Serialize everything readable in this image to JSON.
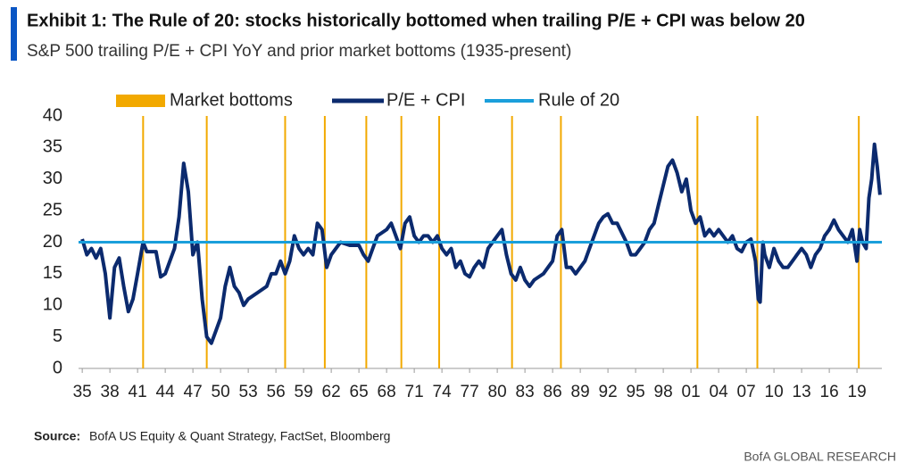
{
  "chart_data": {
    "type": "line",
    "title": "Exhibit 1:  The Rule of 20: stocks historically bottomed when trailing P/E + CPI was below 20",
    "subtitle": "S&P 500 trailing P/E + CPI YoY and prior market bottoms (1935-present)",
    "source_label": "Source:",
    "source": "BofA US Equity & Quant Strategy, FactSet, Bloomberg",
    "credit": "BofA GLOBAL RESEARCH",
    "xlim": [
      1934.6,
      2021.7
    ],
    "ylim": [
      0,
      40
    ],
    "yticks": [
      0,
      5,
      10,
      15,
      20,
      25,
      30,
      35,
      40
    ],
    "xticks": [
      {
        "value": 1935,
        "label": "35"
      },
      {
        "value": 1938,
        "label": "38"
      },
      {
        "value": 1941,
        "label": "41"
      },
      {
        "value": 1944,
        "label": "44"
      },
      {
        "value": 1947,
        "label": "47"
      },
      {
        "value": 1950,
        "label": "50"
      },
      {
        "value": 1953,
        "label": "53"
      },
      {
        "value": 1956,
        "label": "56"
      },
      {
        "value": 1959,
        "label": "59"
      },
      {
        "value": 1962,
        "label": "62"
      },
      {
        "value": 1965,
        "label": "65"
      },
      {
        "value": 1968,
        "label": "68"
      },
      {
        "value": 1971,
        "label": "71"
      },
      {
        "value": 1974,
        "label": "74"
      },
      {
        "value": 1977,
        "label": "77"
      },
      {
        "value": 1980,
        "label": "80"
      },
      {
        "value": 1983,
        "label": "83"
      },
      {
        "value": 1986,
        "label": "86"
      },
      {
        "value": 1989,
        "label": "89"
      },
      {
        "value": 1992,
        "label": "92"
      },
      {
        "value": 1995,
        "label": "95"
      },
      {
        "value": 1998,
        "label": "98"
      },
      {
        "value": 2001,
        "label": "01"
      },
      {
        "value": 2004,
        "label": "04"
      },
      {
        "value": 2007,
        "label": "07"
      },
      {
        "value": 2010,
        "label": "10"
      },
      {
        "value": 2013,
        "label": "13"
      },
      {
        "value": 2016,
        "label": "16"
      },
      {
        "value": 2019,
        "label": "19"
      }
    ],
    "series": [
      {
        "name": "Market bottoms",
        "style": "vline",
        "color": "#f2a900",
        "x": [
          1941.6,
          1948.5,
          1957.0,
          1961.3,
          1965.8,
          1969.6,
          1973.7,
          1981.6,
          1986.9,
          2001.7,
          2008.2,
          2019.2
        ]
      },
      {
        "name": "P/E + CPI",
        "style": "line",
        "color": "#0b2a6e",
        "x": [
          1935,
          1935.5,
          1936,
          1936.5,
          1937,
          1937.5,
          1938,
          1938.5,
          1939,
          1939.5,
          1940,
          1940.5,
          1941,
          1941.6,
          1942,
          1942.5,
          1943,
          1943.5,
          1944,
          1944.5,
          1945,
          1945.5,
          1946,
          1946.5,
          1947,
          1947.5,
          1948,
          1948.5,
          1949,
          1949.5,
          1950,
          1950.5,
          1951,
          1951.5,
          1952,
          1952.5,
          1953,
          1954,
          1955,
          1955.5,
          1956,
          1956.5,
          1957,
          1957.5,
          1958,
          1958.5,
          1959,
          1959.5,
          1960,
          1960.5,
          1961,
          1961.5,
          1962,
          1962.5,
          1963,
          1964,
          1965,
          1965.5,
          1966,
          1966.5,
          1967,
          1968,
          1968.5,
          1969,
          1969.5,
          1970,
          1970.5,
          1971,
          1971.5,
          1972,
          1972.5,
          1973,
          1973.5,
          1974,
          1974.5,
          1975,
          1975.5,
          1976,
          1976.5,
          1977,
          1977.5,
          1978,
          1978.5,
          1979,
          1980,
          1980.5,
          1981,
          1981.5,
          1982,
          1982.5,
          1983,
          1983.5,
          1984,
          1985,
          1985.5,
          1986,
          1986.5,
          1987,
          1987.5,
          1988,
          1988.5,
          1989,
          1989.5,
          1990,
          1990.5,
          1991,
          1991.5,
          1992,
          1992.5,
          1993,
          1994,
          1994.5,
          1995,
          1995.5,
          1996,
          1996.5,
          1997,
          1997.5,
          1998,
          1998.5,
          1999,
          1999.5,
          2000,
          2000.5,
          2001,
          2001.5,
          2002,
          2002.5,
          2003,
          2003.5,
          2004,
          2005,
          2005.5,
          2006,
          2006.5,
          2007,
          2007.5,
          2008,
          2008.3,
          2008.5,
          2008.8,
          2009,
          2009.5,
          2010,
          2010.5,
          2011,
          2011.5,
          2012,
          2012.5,
          2013,
          2013.5,
          2014,
          2014.5,
          2015,
          2015.5,
          2016,
          2016.5,
          2017,
          2017.5,
          2018,
          2018.5,
          2019,
          2019.3,
          2019.6,
          2020,
          2020.3,
          2020.6,
          2020.9,
          2021.2,
          2021.5
        ],
        "values": [
          20.5,
          18,
          19,
          17.5,
          19,
          15,
          8,
          16,
          17.5,
          13,
          9,
          11,
          15,
          20,
          18.5,
          18.5,
          18.5,
          14.5,
          15,
          17,
          19,
          24,
          32.5,
          28,
          18,
          20,
          11,
          5,
          4,
          6,
          8,
          13,
          16,
          13,
          12,
          10,
          11,
          12,
          13,
          15,
          15,
          17,
          15,
          17,
          21,
          19,
          18,
          19,
          18,
          23,
          22,
          16,
          18,
          19,
          20,
          19.5,
          19.5,
          18,
          17,
          19,
          21,
          22,
          23,
          21,
          19,
          23,
          24,
          21,
          20,
          21,
          21,
          20,
          21,
          19,
          18,
          19,
          16,
          17,
          15,
          14.5,
          16,
          17,
          16,
          19,
          21,
          22,
          18,
          15,
          14,
          16,
          14,
          13,
          14,
          15,
          16,
          17,
          21,
          22,
          16,
          16,
          15,
          16,
          17,
          19,
          21,
          23,
          24,
          24.5,
          23,
          23,
          20,
          18,
          18,
          19,
          20,
          22,
          23,
          26,
          29,
          32,
          33,
          31,
          28,
          30,
          25,
          23,
          24,
          21,
          22,
          21,
          22,
          20,
          21,
          19,
          18.5,
          20,
          20.5,
          17,
          11,
          10.5,
          20,
          18,
          16,
          19,
          17,
          16,
          16,
          17,
          18,
          19,
          18,
          16,
          18,
          19,
          21,
          22,
          23.5,
          22,
          21,
          20,
          22,
          17,
          22,
          20,
          19,
          27,
          30,
          35.5,
          32,
          27.5
        ]
      },
      {
        "name": "Rule of 20",
        "style": "hline",
        "color": "#1a9fdb",
        "value": 20
      }
    ]
  }
}
